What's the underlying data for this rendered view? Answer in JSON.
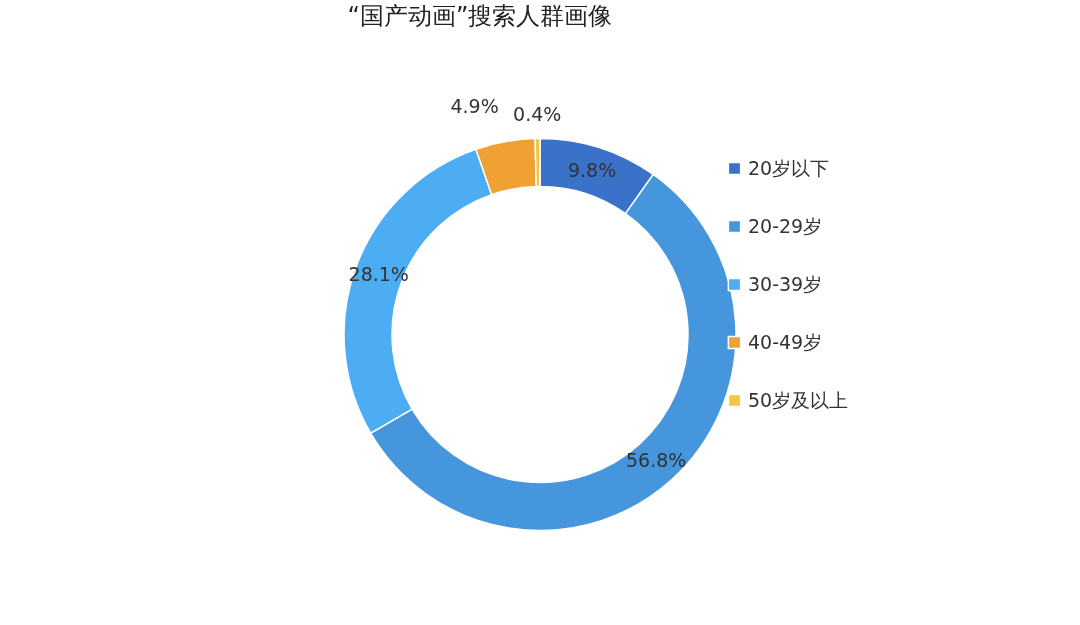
{
  "chart_data": {
    "type": "donut",
    "title": "“国产动画”搜索人群画像",
    "categories": [
      "20岁以下",
      "20-29岁",
      "30-39岁",
      "40-49岁",
      "50岁及以上"
    ],
    "values": [
      9.8,
      56.8,
      28.1,
      4.9,
      0.4
    ],
    "colors": [
      "#3a72c9",
      "#4596dc",
      "#4cadf2",
      "#f0a133",
      "#f5c443"
    ],
    "value_labels": [
      "9.8%",
      "56.8%",
      "28.1%",
      "4.9%",
      "0.4%"
    ],
    "legend": "right"
  }
}
